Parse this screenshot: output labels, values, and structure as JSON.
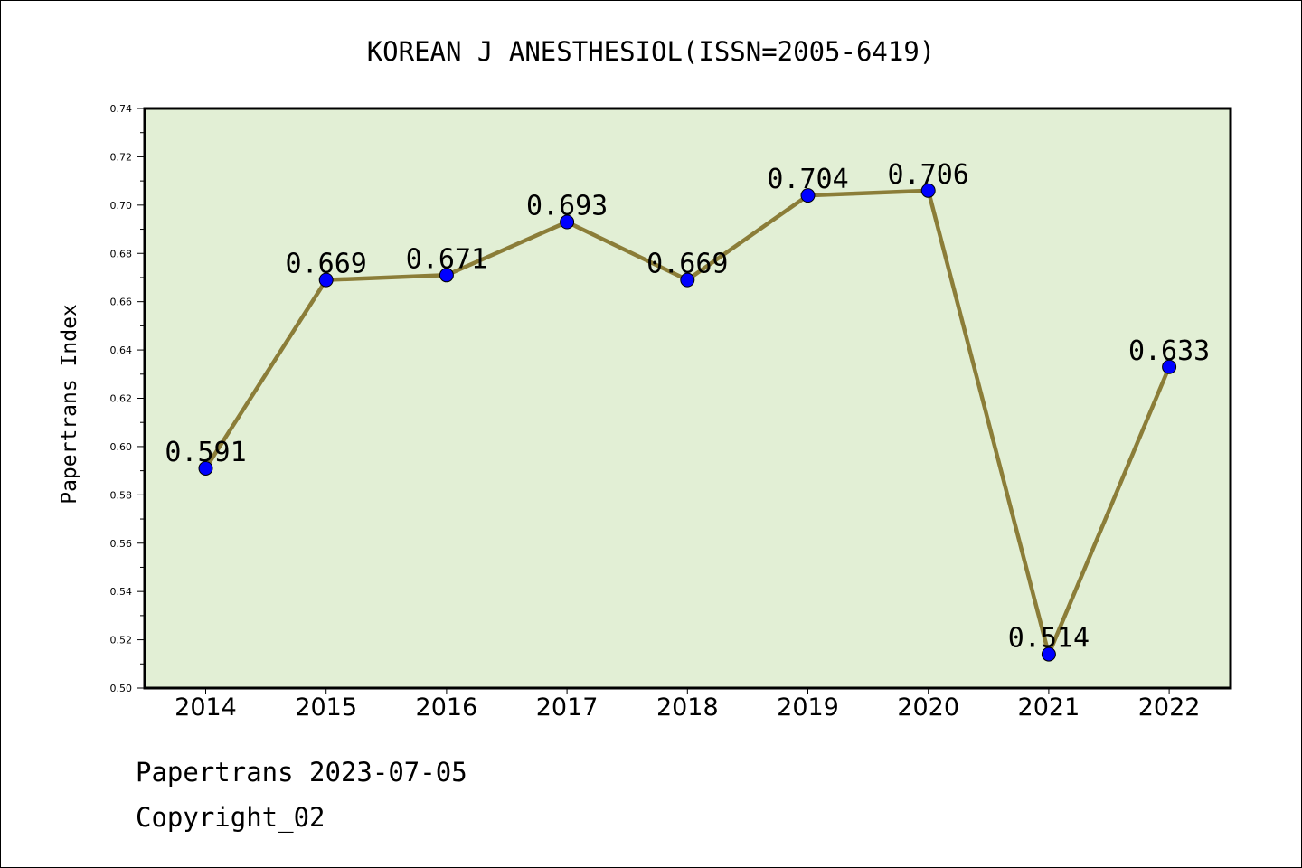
{
  "chart_data": {
    "type": "line",
    "title": "KOREAN J ANESTHESIOL(ISSN=2005-6419)",
    "xlabel": "",
    "ylabel": "Papertrans Index",
    "categories": [
      "2014",
      "2015",
      "2016",
      "2017",
      "2018",
      "2019",
      "2020",
      "2021",
      "2022"
    ],
    "series": [
      {
        "values": [
          0.591,
          0.669,
          0.671,
          0.693,
          0.669,
          0.704,
          0.706,
          0.514,
          0.633
        ],
        "labels": [
          "0.591",
          "0.669",
          "0.671",
          "0.693",
          "0.669",
          "0.704",
          "0.706",
          "0.514",
          "0.633"
        ]
      }
    ],
    "ylim": [
      0.5,
      0.74
    ],
    "yticks": [
      "0.50",
      "0.52",
      "0.54",
      "0.56",
      "0.58",
      "0.60",
      "0.62",
      "0.64",
      "0.66",
      "0.68",
      "0.70",
      "0.72",
      "0.74"
    ],
    "grid": false,
    "legend": "none",
    "colors": {
      "plot_background": "#e2efd5",
      "line": "#8b7d38",
      "marker": "#0000ff"
    }
  },
  "footer": {
    "date_line": "Papertrans 2023-07-05",
    "copyright": "Copyright_02"
  }
}
